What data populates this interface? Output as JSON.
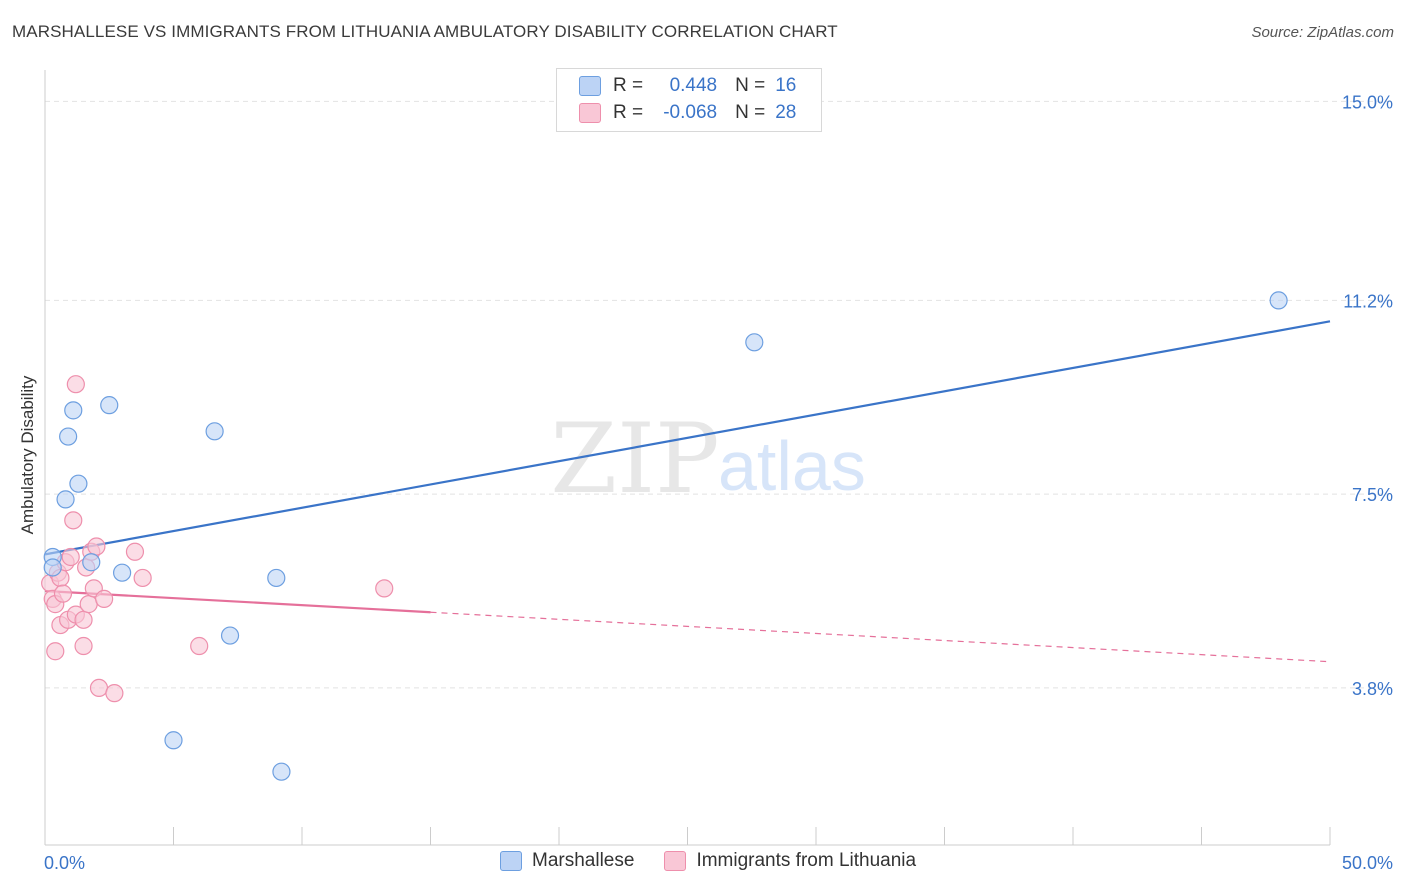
{
  "header": {
    "title": "MARSHALLESE VS IMMIGRANTS FROM LITHUANIA AMBULATORY DISABILITY CORRELATION CHART",
    "source": "Source: ZipAtlas.com"
  },
  "legend": {
    "r_label": "R =",
    "n_label": "N =",
    "rows": [
      {
        "r": "0.448",
        "n": "16"
      },
      {
        "r": "-0.068",
        "n": "28"
      }
    ]
  },
  "watermark": {
    "zip": "ZIP",
    "atlas": "atlas"
  },
  "colors": {
    "blue_fill": "#bcd3f5",
    "blue_stroke": "#6d9fe0",
    "blue_line": "#3a74c8",
    "pink_fill": "#f9c7d6",
    "pink_stroke": "#ee8fac",
    "pink_line": "#e5709a",
    "tick_label": "#3a74c8",
    "grid": "#e2e2e2"
  },
  "chart_data": {
    "type": "scatter",
    "title": "MARSHALLESE VS IMMIGRANTS FROM LITHUANIA AMBULATORY DISABILITY CORRELATION CHART",
    "xlabel": "",
    "ylabel": "Ambulatory Disability",
    "xlim": [
      0,
      50
    ],
    "ylim": [
      0.8,
      15.6
    ],
    "x_tick_labels": [
      "0.0%",
      "50.0%"
    ],
    "y_ticks": [
      {
        "value": 3.8,
        "label": "3.8%"
      },
      {
        "value": 7.5,
        "label": "7.5%"
      },
      {
        "value": 11.2,
        "label": "11.2%"
      },
      {
        "value": 15.0,
        "label": "15.0%"
      }
    ],
    "grid": "horizontal-dashed",
    "legend_position": "top-center",
    "series": [
      {
        "name": "Marshallese",
        "points": [
          [
            0.3,
            6.3
          ],
          [
            0.3,
            6.1
          ],
          [
            0.8,
            7.4
          ],
          [
            0.9,
            8.6
          ],
          [
            1.1,
            9.1
          ],
          [
            1.3,
            7.7
          ],
          [
            1.8,
            6.2
          ],
          [
            2.5,
            9.2
          ],
          [
            3.0,
            6.0
          ],
          [
            5.0,
            2.8
          ],
          [
            6.6,
            8.7
          ],
          [
            7.2,
            4.8
          ],
          [
            9.0,
            5.9
          ],
          [
            9.2,
            2.2
          ],
          [
            27.6,
            10.4
          ],
          [
            48.0,
            11.2
          ]
        ],
        "trend": {
          "x": [
            0,
            50
          ],
          "y": [
            6.35,
            10.8
          ],
          "style": "solid"
        }
      },
      {
        "name": "Immigrants from Lithuania",
        "points": [
          [
            0.2,
            5.8
          ],
          [
            0.3,
            5.5
          ],
          [
            0.4,
            5.4
          ],
          [
            0.4,
            4.5
          ],
          [
            0.5,
            6.0
          ],
          [
            0.6,
            5.9
          ],
          [
            0.6,
            5.0
          ],
          [
            0.7,
            5.6
          ],
          [
            0.8,
            6.2
          ],
          [
            0.9,
            5.1
          ],
          [
            1.0,
            6.3
          ],
          [
            1.1,
            7.0
          ],
          [
            1.2,
            5.2
          ],
          [
            1.2,
            9.6
          ],
          [
            1.5,
            5.1
          ],
          [
            1.5,
            4.6
          ],
          [
            1.6,
            6.1
          ],
          [
            1.7,
            5.4
          ],
          [
            1.8,
            6.4
          ],
          [
            1.9,
            5.7
          ],
          [
            2.0,
            6.5
          ],
          [
            2.1,
            3.8
          ],
          [
            2.3,
            5.5
          ],
          [
            2.7,
            3.7
          ],
          [
            3.5,
            6.4
          ],
          [
            3.8,
            5.9
          ],
          [
            6.0,
            4.6
          ],
          [
            13.2,
            5.7
          ]
        ],
        "trend": {
          "x": [
            0,
            50
          ],
          "y": [
            5.65,
            4.3
          ],
          "solid_until_x": 15,
          "style": "solid-then-dashed"
        }
      }
    ]
  }
}
